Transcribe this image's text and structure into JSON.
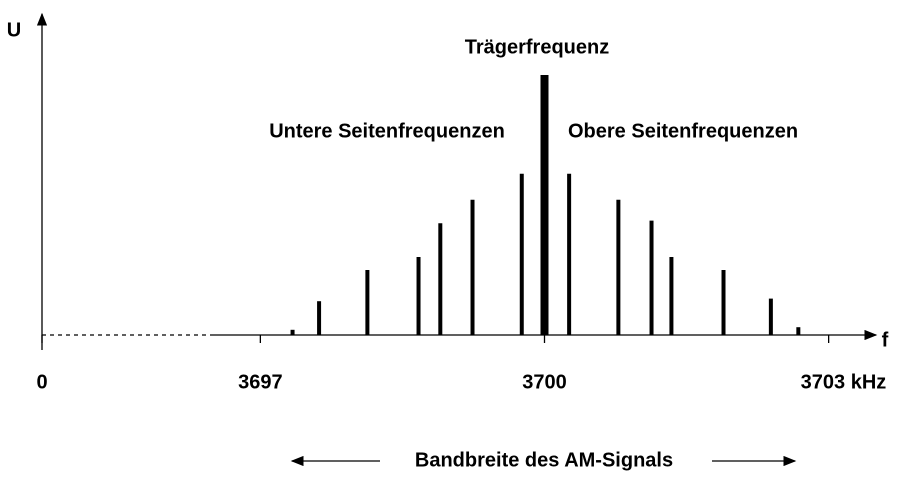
{
  "chart_data": {
    "type": "stem",
    "y_label": "U",
    "x_label": "f",
    "annotation": "Bandbreite des AM-Signals",
    "xlim": [
      3696.5,
      3703.5
    ],
    "ylim": [
      0,
      1
    ],
    "xticks": [
      0,
      3697,
      3700,
      {
        "value": 3703,
        "label": "3703 kHz"
      }
    ],
    "series": [
      {
        "name": "Untere Seitenfrequenzen",
        "color": "#000000",
        "x": [
          3697.34,
          3697.62,
          3698.13,
          3698.67,
          3698.9,
          3699.24,
          3699.76
        ],
        "values": [
          0.02,
          0.13,
          0.25,
          0.3,
          0.43,
          0.52,
          0.62
        ]
      },
      {
        "name": "Trägerfrequenz",
        "color": "#000000",
        "x": [
          3700
        ],
        "values": [
          1.0
        ]
      },
      {
        "name": "Obere Seitenfrequenzen",
        "color": "#000000",
        "x": [
          3700.26,
          3700.78,
          3701.13,
          3701.34,
          3701.89,
          3702.39,
          3702.68
        ],
        "values": [
          0.62,
          0.52,
          0.44,
          0.3,
          0.25,
          0.14,
          0.03
        ]
      }
    ]
  }
}
